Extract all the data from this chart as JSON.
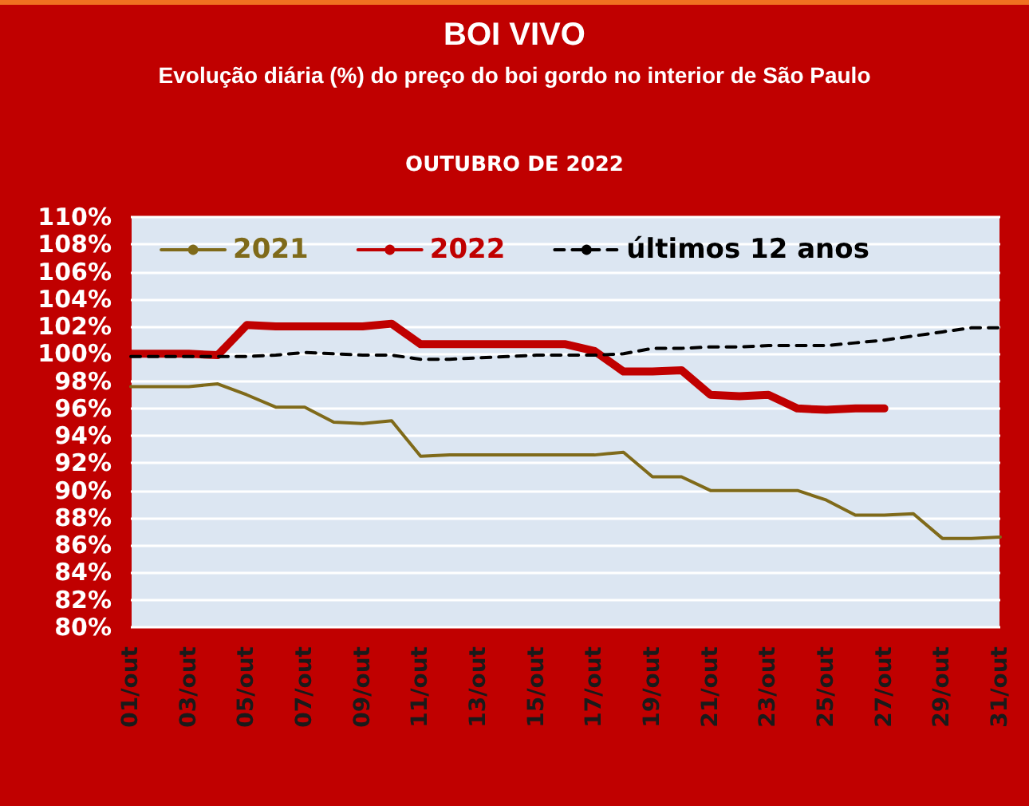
{
  "chart_data": {
    "type": "line",
    "title": "BOI VIVO",
    "subtitle": "Evolução diária (%) do preço do boi gordo no interior de São Paulo",
    "annotations": [
      "OUTUBRO DE 2022"
    ],
    "categories": [
      "01/out",
      null,
      "03/out",
      null,
      "05/out",
      null,
      "07/out",
      null,
      "09/out",
      null,
      "11/out",
      null,
      "13/out",
      null,
      "15/out",
      null,
      "17/out",
      null,
      "19/out",
      null,
      "21/out",
      null,
      "23/out",
      null,
      "25/out",
      null,
      "27/out",
      null,
      "29/out",
      null,
      "31/out"
    ],
    "series": [
      {
        "name": "2021",
        "color": "#7f6a1a",
        "line_style": "solid",
        "values": [
          97.6,
          97.6,
          97.6,
          97.8,
          97.0,
          96.1,
          96.1,
          95.0,
          94.9,
          95.1,
          92.5,
          92.6,
          92.6,
          92.6,
          92.6,
          92.6,
          92.6,
          92.8,
          91.0,
          91.0,
          90.0,
          90.0,
          90.0,
          90.0,
          89.3,
          88.2,
          88.2,
          88.3,
          86.5,
          86.5,
          86.6
        ]
      },
      {
        "name": "2022",
        "color": "#c00000",
        "line_style": "solid",
        "values": [
          100.0,
          100.0,
          100.0,
          99.9,
          102.1,
          102.0,
          102.0,
          102.0,
          102.0,
          102.2,
          100.7,
          100.7,
          100.7,
          100.7,
          100.7,
          100.7,
          100.2,
          98.7,
          98.7,
          98.8,
          97.0,
          96.9,
          97.0,
          96.0,
          95.9,
          96.0,
          96.0,
          null,
          null,
          null,
          null
        ]
      },
      {
        "name": "últimos 12 anos",
        "color": "#000000",
        "line_style": "dashed",
        "values": [
          99.8,
          99.8,
          99.8,
          99.8,
          99.8,
          99.9,
          100.1,
          100.0,
          99.9,
          99.9,
          99.6,
          99.6,
          99.7,
          99.8,
          99.9,
          99.9,
          99.9,
          100.0,
          100.4,
          100.4,
          100.5,
          100.5,
          100.6,
          100.6,
          100.6,
          100.8,
          101.0,
          101.3,
          101.6,
          101.9,
          101.9
        ]
      }
    ],
    "ylim": [
      80,
      110
    ],
    "yticks": [
      {
        "value": 80,
        "label": "80%"
      },
      {
        "value": 82,
        "label": "82%"
      },
      {
        "value": 84,
        "label": "84%"
      },
      {
        "value": 86,
        "label": "86%"
      },
      {
        "value": 88,
        "label": "88%"
      },
      {
        "value": 90,
        "label": "90%"
      },
      {
        "value": 92,
        "label": "92%"
      },
      {
        "value": 94,
        "label": "94%"
      },
      {
        "value": 96,
        "label": "96%"
      },
      {
        "value": 98,
        "label": "98%"
      },
      {
        "value": 100,
        "label": "100%"
      },
      {
        "value": 102,
        "label": "102%"
      },
      {
        "value": 104,
        "label": "104%"
      },
      {
        "value": 106,
        "label": "106%"
      },
      {
        "value": 108,
        "label": "108%"
      },
      {
        "value": 110,
        "label": "110%"
      }
    ],
    "grid": "y",
    "legend": "top",
    "marker": "none"
  }
}
